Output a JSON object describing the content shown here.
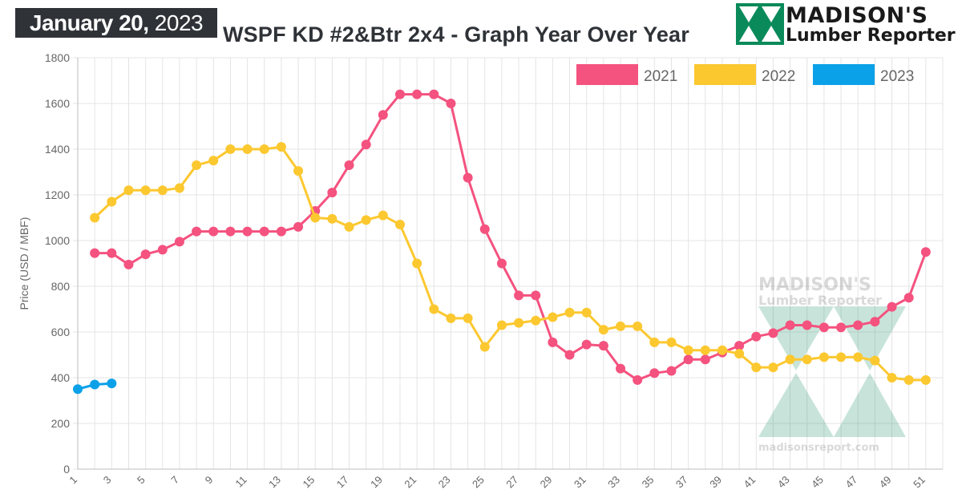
{
  "header": {
    "date_bold": "January 20,",
    "date_year": "2023",
    "title": "WSPF KD #2&Btr 2x4 - Graph Year Over Year"
  },
  "logo": {
    "line1": "MADISON'S",
    "line2": "Lumber Reporter"
  },
  "watermark": {
    "line1": "MADISON'S",
    "line2": "Lumber Reporter",
    "url": "madisonsreport.com"
  },
  "colors": {
    "s2021": "#f4527f",
    "s2022": "#fcc830",
    "s2023": "#0aa1e8",
    "logo_green": "#0a8a5b",
    "grid": "#e4e4e4",
    "text": "#666666"
  },
  "chart_data": {
    "type": "line",
    "ylabel": "Price (USD / MBF)",
    "xlabel": "",
    "ylim": [
      0,
      1800
    ],
    "yticks": [
      0,
      200,
      400,
      600,
      800,
      1000,
      1200,
      1400,
      1600,
      1800
    ],
    "xlim": [
      1,
      52
    ],
    "xticks": [
      1,
      3,
      5,
      7,
      9,
      11,
      13,
      15,
      17,
      19,
      21,
      23,
      25,
      27,
      29,
      31,
      33,
      35,
      37,
      39,
      41,
      43,
      45,
      47,
      49,
      51
    ],
    "grid": true,
    "legend_position": "top-right",
    "series": [
      {
        "name": "2021",
        "x": [
          2,
          3,
          4,
          5,
          6,
          7,
          8,
          9,
          10,
          11,
          12,
          13,
          14,
          15,
          16,
          17,
          18,
          19,
          20,
          21,
          22,
          23,
          24,
          25,
          26,
          27,
          28,
          29,
          30,
          31,
          32,
          33,
          34,
          35,
          36,
          37,
          38,
          39,
          40,
          41,
          42,
          43,
          44,
          45,
          46,
          47,
          48,
          49,
          50,
          51
        ],
        "values": [
          945,
          945,
          895,
          940,
          960,
          995,
          1040,
          1040,
          1040,
          1040,
          1040,
          1040,
          1060,
          1130,
          1210,
          1330,
          1420,
          1550,
          1640,
          1640,
          1640,
          1600,
          1275,
          1050,
          900,
          760,
          760,
          555,
          500,
          545,
          540,
          440,
          390,
          420,
          430,
          480,
          480,
          510,
          540,
          580,
          595,
          630,
          630,
          620,
          620,
          630,
          645,
          710,
          750,
          950
        ]
      },
      {
        "name": "2022",
        "x": [
          2,
          3,
          4,
          5,
          6,
          7,
          8,
          9,
          10,
          11,
          12,
          13,
          14,
          15,
          16,
          17,
          18,
          19,
          20,
          21,
          22,
          23,
          24,
          25,
          26,
          27,
          28,
          29,
          30,
          31,
          32,
          33,
          34,
          35,
          36,
          37,
          38,
          39,
          40,
          41,
          42,
          43,
          44,
          45,
          46,
          47,
          48,
          49,
          50,
          51
        ],
        "values": [
          1100,
          1170,
          1220,
          1220,
          1220,
          1230,
          1330,
          1350,
          1400,
          1400,
          1400,
          1410,
          1305,
          1100,
          1095,
          1060,
          1090,
          1110,
          1070,
          900,
          700,
          660,
          660,
          535,
          630,
          640,
          650,
          665,
          685,
          685,
          610,
          625,
          625,
          555,
          555,
          520,
          520,
          520,
          505,
          445,
          445,
          480,
          480,
          490,
          490,
          490,
          475,
          400,
          390,
          390
        ]
      },
      {
        "name": "2023",
        "x": [
          1,
          2,
          3
        ],
        "values": [
          350,
          370,
          375
        ]
      }
    ]
  }
}
